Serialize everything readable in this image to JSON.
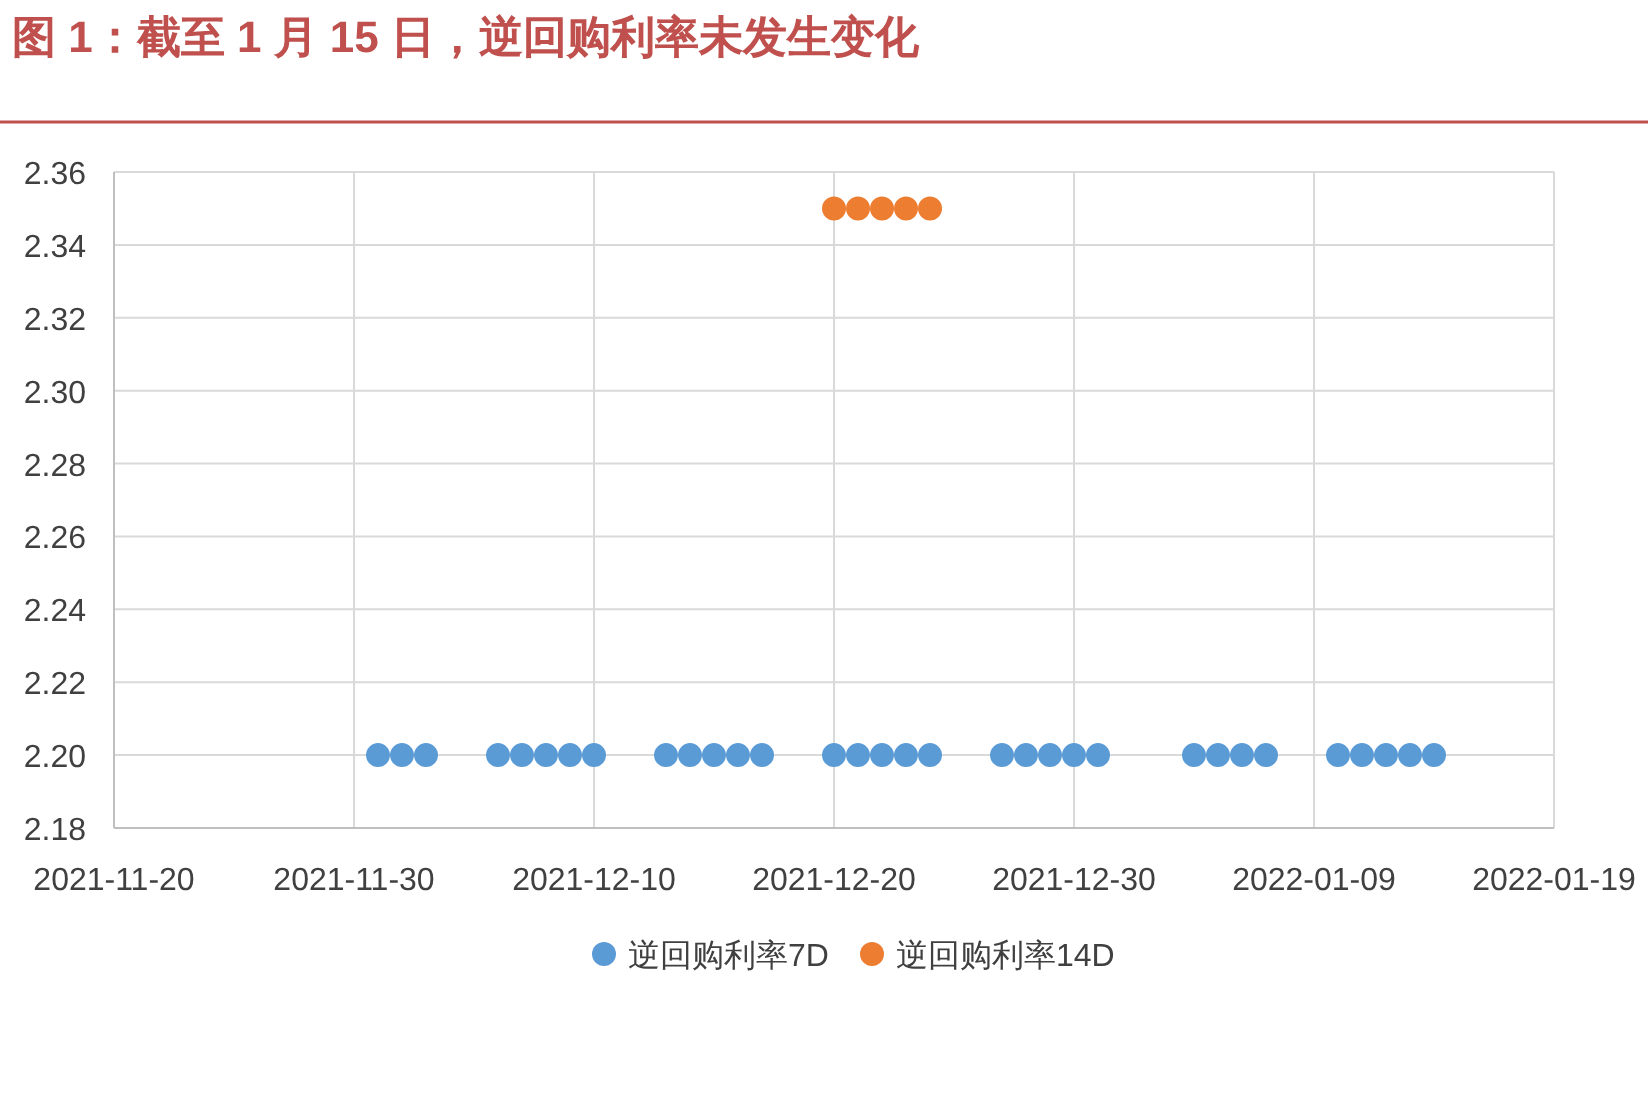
{
  "chart_data": {
    "type": "scatter",
    "title": "图 1：截至 1 月 15 日，逆回购利率未发生变化",
    "series": [
      {
        "name": "逆回购利率7D",
        "color": "#5b9bd5",
        "x": [
          "2021-12-01",
          "2021-12-02",
          "2021-12-03",
          "2021-12-06",
          "2021-12-07",
          "2021-12-08",
          "2021-12-09",
          "2021-12-10",
          "2021-12-13",
          "2021-12-14",
          "2021-12-15",
          "2021-12-16",
          "2021-12-17",
          "2021-12-20",
          "2021-12-21",
          "2021-12-22",
          "2021-12-23",
          "2021-12-24",
          "2021-12-27",
          "2021-12-28",
          "2021-12-29",
          "2021-12-30",
          "2021-12-31",
          "2022-01-04",
          "2022-01-05",
          "2022-01-06",
          "2022-01-07",
          "2022-01-10",
          "2022-01-11",
          "2022-01-12",
          "2022-01-13",
          "2022-01-14"
        ],
        "values": [
          2.2,
          2.2,
          2.2,
          2.2,
          2.2,
          2.2,
          2.2,
          2.2,
          2.2,
          2.2,
          2.2,
          2.2,
          2.2,
          2.2,
          2.2,
          2.2,
          2.2,
          2.2,
          2.2,
          2.2,
          2.2,
          2.2,
          2.2,
          2.2,
          2.2,
          2.2,
          2.2,
          2.2,
          2.2,
          2.2,
          2.2,
          2.2
        ]
      },
      {
        "name": "逆回购利率14D",
        "color": "#ed7d31",
        "x": [
          "2021-12-20",
          "2021-12-21",
          "2021-12-22",
          "2021-12-23",
          "2021-12-24"
        ],
        "values": [
          2.35,
          2.35,
          2.35,
          2.35,
          2.35
        ]
      }
    ],
    "xlim": [
      "2021-11-20",
      "2022-01-19"
    ],
    "xticks": [
      "2021-11-20",
      "2021-11-30",
      "2021-12-10",
      "2021-12-20",
      "2021-12-30",
      "2022-01-09",
      "2022-01-19"
    ],
    "ylim": [
      2.18,
      2.36
    ],
    "yticks": [
      {
        "value": 2.18,
        "label": "2.18"
      },
      {
        "value": 2.2,
        "label": "2.20"
      },
      {
        "value": 2.22,
        "label": "2.22"
      },
      {
        "value": 2.24,
        "label": "2.24"
      },
      {
        "value": 2.26,
        "label": "2.26"
      },
      {
        "value": 2.28,
        "label": "2.28"
      },
      {
        "value": 2.3,
        "label": "2.30"
      },
      {
        "value": 2.32,
        "label": "2.32"
      },
      {
        "value": 2.34,
        "label": "2.34"
      },
      {
        "value": 2.36,
        "label": "2.36"
      }
    ],
    "grid": true,
    "legend": "bottom",
    "marker": "circle"
  }
}
